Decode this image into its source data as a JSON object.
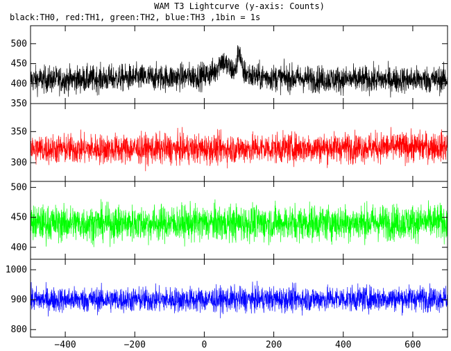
{
  "chart_data": {
    "type": "line",
    "title": "WAM T3 Lightcurve (y-axis: Counts)",
    "subtitle": "black:TH0, red:TH1, green:TH2, blue:TH3 ,1bin = 1s",
    "xlabel": "",
    "ylabel": "",
    "xlim": [
      -500,
      700
    ],
    "x_ticks": [
      -400,
      -200,
      0,
      200,
      400,
      600
    ],
    "grid": false,
    "panels": [
      {
        "color": "#000000",
        "ylim": [
          350,
          545
        ],
        "y_ticks": [
          350,
          400,
          450,
          500
        ],
        "series_points": [
          [
            -500,
            410
          ],
          [
            -400,
            410
          ],
          [
            -300,
            412
          ],
          [
            -200,
            415
          ],
          [
            -100,
            415
          ],
          [
            0,
            420
          ],
          [
            30,
            430
          ],
          [
            50,
            460
          ],
          [
            70,
            440
          ],
          [
            90,
            430
          ],
          [
            100,
            490
          ],
          [
            110,
            430
          ],
          [
            140,
            418
          ],
          [
            200,
            415
          ],
          [
            300,
            412
          ],
          [
            400,
            410
          ],
          [
            500,
            410
          ],
          [
            600,
            410
          ],
          [
            700,
            410
          ]
        ],
        "noise": 28
      },
      {
        "color": "#ff0000",
        "ylim": [
          270,
          395
        ],
        "y_ticks": [
          300,
          350
        ],
        "series_points": [
          [
            -500,
            322
          ],
          [
            0,
            322
          ],
          [
            700,
            326
          ]
        ],
        "noise": 20
      },
      {
        "color": "#00ff00",
        "ylim": [
          380,
          510
        ],
        "y_ticks": [
          400,
          450,
          500
        ],
        "series_points": [
          [
            -500,
            440
          ],
          [
            0,
            440
          ],
          [
            700,
            442
          ]
        ],
        "noise": 25
      },
      {
        "color": "#0000ff",
        "ylim": [
          775,
          1035
        ],
        "y_ticks": [
          800,
          900,
          1000
        ],
        "series_points": [
          [
            -500,
            900
          ],
          [
            0,
            900
          ],
          [
            700,
            905
          ]
        ],
        "noise": 35
      }
    ]
  }
}
